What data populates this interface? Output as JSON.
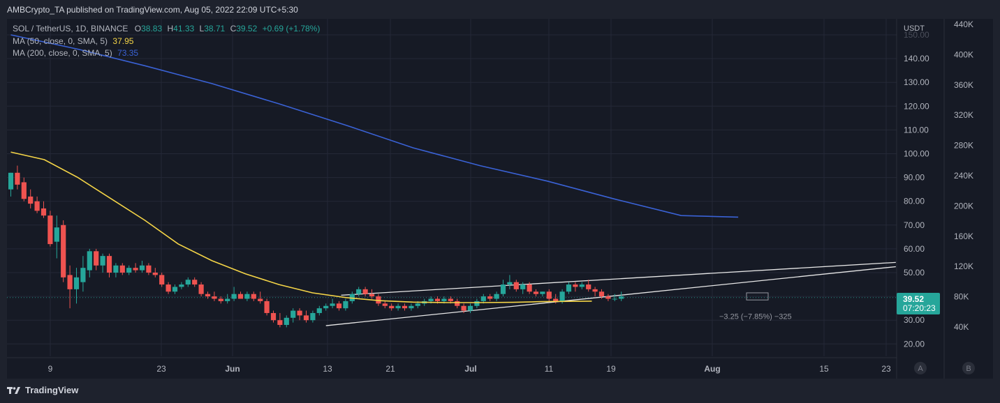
{
  "header": {
    "publisher": "AMBCrypto_TA published on TradingView.com, Aug 05, 2022 22:09 UTC+5:30"
  },
  "legend": {
    "symbol": "SOL / TetherUS, 1D, BINANCE",
    "o_label": "O",
    "o": "38.83",
    "h_label": "H",
    "h": "41.33",
    "l_label": "L",
    "l": "38.71",
    "c_label": "C",
    "c": "39.52",
    "change": "+0.69 (+1.78%)",
    "ma50_label": "MA (50, close, 0, SMA, 5)",
    "ma50_value": "37.95",
    "ma200_label": "MA (200, close, 0, SMA, 5)",
    "ma200_value": "73.35"
  },
  "price_axis": {
    "unit": "USDT",
    "ticks": [
      "150.00",
      "140.00",
      "130.00",
      "120.00",
      "110.00",
      "100.00",
      "90.00",
      "80.00",
      "70.00",
      "60.00",
      "50.00",
      "40.00",
      "30.00",
      "20.00"
    ],
    "last_price": "39.52",
    "countdown": "07:20:23"
  },
  "volume_axis": {
    "ticks": [
      "440K",
      "400K",
      "360K",
      "320K",
      "280K",
      "240K",
      "200K",
      "160K",
      "120K",
      "80K",
      "40K"
    ]
  },
  "time_axis": {
    "ticks": [
      "9",
      "23",
      "Jun",
      "13",
      "21",
      "Jul",
      "11",
      "19",
      "Aug",
      "15",
      "23"
    ]
  },
  "buttons": {
    "a": "A",
    "b": "B"
  },
  "measure_label": "−3.25 (−7.85%) −325",
  "footer": {
    "brand": "TradingView"
  },
  "colors": {
    "bg": "#161a25",
    "up": "#26a69a",
    "down": "#ef5350",
    "ma50": "#f5d547",
    "ma200": "#3a62d6",
    "trendline": "#e8e8e8"
  },
  "chart_data": {
    "type": "candlestick",
    "title": "SOL / TetherUS, 1D, BINANCE",
    "ylabel": "USDT",
    "ylim": [
      15,
      155
    ],
    "x_ticks": [
      "9",
      "23",
      "Jun",
      "13",
      "21",
      "Jul",
      "11",
      "19",
      "Aug",
      "15",
      "23"
    ],
    "candles": [
      {
        "o": 85,
        "h": 92,
        "l": 82,
        "c": 92
      },
      {
        "o": 92,
        "h": 95,
        "l": 85,
        "c": 87
      },
      {
        "o": 88,
        "h": 90,
        "l": 80,
        "c": 81
      },
      {
        "o": 82,
        "h": 85,
        "l": 77,
        "c": 79
      },
      {
        "o": 80,
        "h": 82,
        "l": 75,
        "c": 76
      },
      {
        "o": 77,
        "h": 80,
        "l": 73,
        "c": 74
      },
      {
        "o": 74,
        "h": 76,
        "l": 61,
        "c": 62
      },
      {
        "o": 63,
        "h": 74,
        "l": 56,
        "c": 69
      },
      {
        "o": 70,
        "h": 72,
        "l": 46,
        "c": 48
      },
      {
        "o": 49,
        "h": 53,
        "l": 35,
        "c": 43
      },
      {
        "o": 43,
        "h": 52,
        "l": 37,
        "c": 48
      },
      {
        "o": 46,
        "h": 57,
        "l": 42,
        "c": 52
      },
      {
        "o": 51,
        "h": 60,
        "l": 48,
        "c": 59
      },
      {
        "o": 59,
        "h": 60,
        "l": 51,
        "c": 53
      },
      {
        "o": 53,
        "h": 58,
        "l": 50,
        "c": 57
      },
      {
        "o": 57,
        "h": 58,
        "l": 48,
        "c": 50
      },
      {
        "o": 50,
        "h": 54,
        "l": 48,
        "c": 53
      },
      {
        "o": 53,
        "h": 54,
        "l": 49,
        "c": 50
      },
      {
        "o": 50,
        "h": 53,
        "l": 49,
        "c": 52
      },
      {
        "o": 52,
        "h": 54,
        "l": 50,
        "c": 51
      },
      {
        "o": 51,
        "h": 55,
        "l": 50,
        "c": 53
      },
      {
        "o": 53,
        "h": 54,
        "l": 49,
        "c": 50
      },
      {
        "o": 50,
        "h": 52,
        "l": 48,
        "c": 49
      },
      {
        "o": 49,
        "h": 50,
        "l": 44,
        "c": 45
      },
      {
        "o": 45,
        "h": 46,
        "l": 41,
        "c": 42
      },
      {
        "o": 42,
        "h": 45,
        "l": 41,
        "c": 44
      },
      {
        "o": 44,
        "h": 46,
        "l": 43,
        "c": 45
      },
      {
        "o": 45,
        "h": 48,
        "l": 44,
        "c": 47
      },
      {
        "o": 47,
        "h": 48,
        "l": 44,
        "c": 45
      },
      {
        "o": 45,
        "h": 46,
        "l": 40,
        "c": 41
      },
      {
        "o": 41,
        "h": 42,
        "l": 39,
        "c": 40
      },
      {
        "o": 40,
        "h": 42,
        "l": 38,
        "c": 39
      },
      {
        "o": 39,
        "h": 40,
        "l": 37,
        "c": 38
      },
      {
        "o": 38,
        "h": 41,
        "l": 37,
        "c": 39
      },
      {
        "o": 39,
        "h": 44,
        "l": 38,
        "c": 41
      },
      {
        "o": 41,
        "h": 42,
        "l": 39,
        "c": 39
      },
      {
        "o": 39,
        "h": 42,
        "l": 38,
        "c": 41
      },
      {
        "o": 41,
        "h": 42,
        "l": 38,
        "c": 39
      },
      {
        "o": 39,
        "h": 42,
        "l": 37,
        "c": 38
      },
      {
        "o": 38,
        "h": 39,
        "l": 32,
        "c": 33
      },
      {
        "o": 33,
        "h": 34,
        "l": 29,
        "c": 30
      },
      {
        "o": 30,
        "h": 33,
        "l": 27,
        "c": 28
      },
      {
        "o": 28,
        "h": 32,
        "l": 27,
        "c": 31
      },
      {
        "o": 31,
        "h": 35,
        "l": 29,
        "c": 34
      },
      {
        "o": 34,
        "h": 35,
        "l": 30,
        "c": 32
      },
      {
        "o": 32,
        "h": 34,
        "l": 29,
        "c": 30
      },
      {
        "o": 30,
        "h": 34,
        "l": 29,
        "c": 33
      },
      {
        "o": 33,
        "h": 36,
        "l": 32,
        "c": 35
      },
      {
        "o": 35,
        "h": 37,
        "l": 34,
        "c": 36
      },
      {
        "o": 36,
        "h": 39,
        "l": 35,
        "c": 37
      },
      {
        "o": 37,
        "h": 38,
        "l": 34,
        "c": 35
      },
      {
        "o": 35,
        "h": 39,
        "l": 34,
        "c": 38
      },
      {
        "o": 38,
        "h": 42,
        "l": 37,
        "c": 41
      },
      {
        "o": 41,
        "h": 44,
        "l": 40,
        "c": 43
      },
      {
        "o": 43,
        "h": 44,
        "l": 40,
        "c": 41
      },
      {
        "o": 41,
        "h": 43,
        "l": 39,
        "c": 40
      },
      {
        "o": 40,
        "h": 41,
        "l": 36,
        "c": 37
      },
      {
        "o": 37,
        "h": 38,
        "l": 35,
        "c": 36
      },
      {
        "o": 36,
        "h": 37,
        "l": 34,
        "c": 35
      },
      {
        "o": 35,
        "h": 37,
        "l": 34,
        "c": 36
      },
      {
        "o": 36,
        "h": 37,
        "l": 34,
        "c": 35
      },
      {
        "o": 35,
        "h": 37,
        "l": 34,
        "c": 36
      },
      {
        "o": 36,
        "h": 38,
        "l": 35,
        "c": 37
      },
      {
        "o": 37,
        "h": 39,
        "l": 36,
        "c": 38
      },
      {
        "o": 38,
        "h": 40,
        "l": 37,
        "c": 39
      },
      {
        "o": 39,
        "h": 40,
        "l": 37,
        "c": 38
      },
      {
        "o": 38,
        "h": 40,
        "l": 37,
        "c": 39
      },
      {
        "o": 39,
        "h": 40,
        "l": 37,
        "c": 38
      },
      {
        "o": 38,
        "h": 39,
        "l": 35,
        "c": 36
      },
      {
        "o": 36,
        "h": 37,
        "l": 33,
        "c": 34
      },
      {
        "o": 34,
        "h": 37,
        "l": 33,
        "c": 36
      },
      {
        "o": 36,
        "h": 39,
        "l": 35,
        "c": 38
      },
      {
        "o": 38,
        "h": 41,
        "l": 37,
        "c": 40
      },
      {
        "o": 40,
        "h": 41,
        "l": 38,
        "c": 39
      },
      {
        "o": 39,
        "h": 42,
        "l": 38,
        "c": 41
      },
      {
        "o": 41,
        "h": 47,
        "l": 40,
        "c": 45
      },
      {
        "o": 45,
        "h": 49,
        "l": 43,
        "c": 46
      },
      {
        "o": 46,
        "h": 47,
        "l": 42,
        "c": 43
      },
      {
        "o": 43,
        "h": 46,
        "l": 41,
        "c": 45
      },
      {
        "o": 45,
        "h": 46,
        "l": 41,
        "c": 42
      },
      {
        "o": 42,
        "h": 43,
        "l": 40,
        "c": 41
      },
      {
        "o": 41,
        "h": 42,
        "l": 40,
        "c": 42
      },
      {
        "o": 42,
        "h": 43,
        "l": 38,
        "c": 39
      },
      {
        "o": 39,
        "h": 41,
        "l": 37,
        "c": 38
      },
      {
        "o": 38,
        "h": 43,
        "l": 37,
        "c": 42
      },
      {
        "o": 42,
        "h": 46,
        "l": 41,
        "c": 45
      },
      {
        "o": 45,
        "h": 46,
        "l": 42,
        "c": 44
      },
      {
        "o": 44,
        "h": 46,
        "l": 43,
        "c": 45
      },
      {
        "o": 45,
        "h": 47,
        "l": 42,
        "c": 43
      },
      {
        "o": 43,
        "h": 44,
        "l": 40,
        "c": 42
      },
      {
        "o": 42,
        "h": 43,
        "l": 39,
        "c": 40
      },
      {
        "o": 40,
        "h": 41,
        "l": 38,
        "c": 39
      },
      {
        "o": 39,
        "h": 41,
        "l": 38,
        "c": 39
      },
      {
        "o": 39,
        "h": 42,
        "l": 38,
        "c": 40
      }
    ],
    "series": [
      {
        "name": "MA (50, close, 0, SMA, 5)",
        "values": [
          [
            0,
            100.7
          ],
          [
            30,
            97.5
          ],
          [
            60,
            90
          ],
          [
            90,
            81
          ],
          [
            120,
            72
          ],
          [
            150,
            62
          ],
          [
            180,
            55
          ],
          [
            210,
            49.5
          ],
          [
            240,
            45
          ],
          [
            270,
            41.5
          ],
          [
            300,
            39.5
          ],
          [
            330,
            38.2
          ],
          [
            360,
            37.6
          ],
          [
            390,
            37.4
          ],
          [
            420,
            37.4
          ],
          [
            450,
            37.5
          ],
          [
            475,
            37.8
          ],
          [
            520,
            38.0
          ]
        ]
      },
      {
        "name": "MA (200, close, 0, SMA, 5)",
        "values": [
          [
            0,
            150
          ],
          [
            60,
            144
          ],
          [
            120,
            137
          ],
          [
            180,
            129.5
          ],
          [
            240,
            121
          ],
          [
            300,
            112
          ],
          [
            360,
            102.5
          ],
          [
            420,
            95
          ],
          [
            480,
            88.5
          ],
          [
            540,
            81
          ],
          [
            600,
            74
          ],
          [
            651,
            73.35
          ]
        ]
      }
    ],
    "trendlines": [
      {
        "from": [
          10.5,
          27.7
        ],
        "to": [
          296,
          52.5
        ]
      },
      {
        "from": [
          11,
          40.5
        ],
        "to": [
          296,
          54.3
        ]
      }
    ],
    "last_price": 39.52
  }
}
